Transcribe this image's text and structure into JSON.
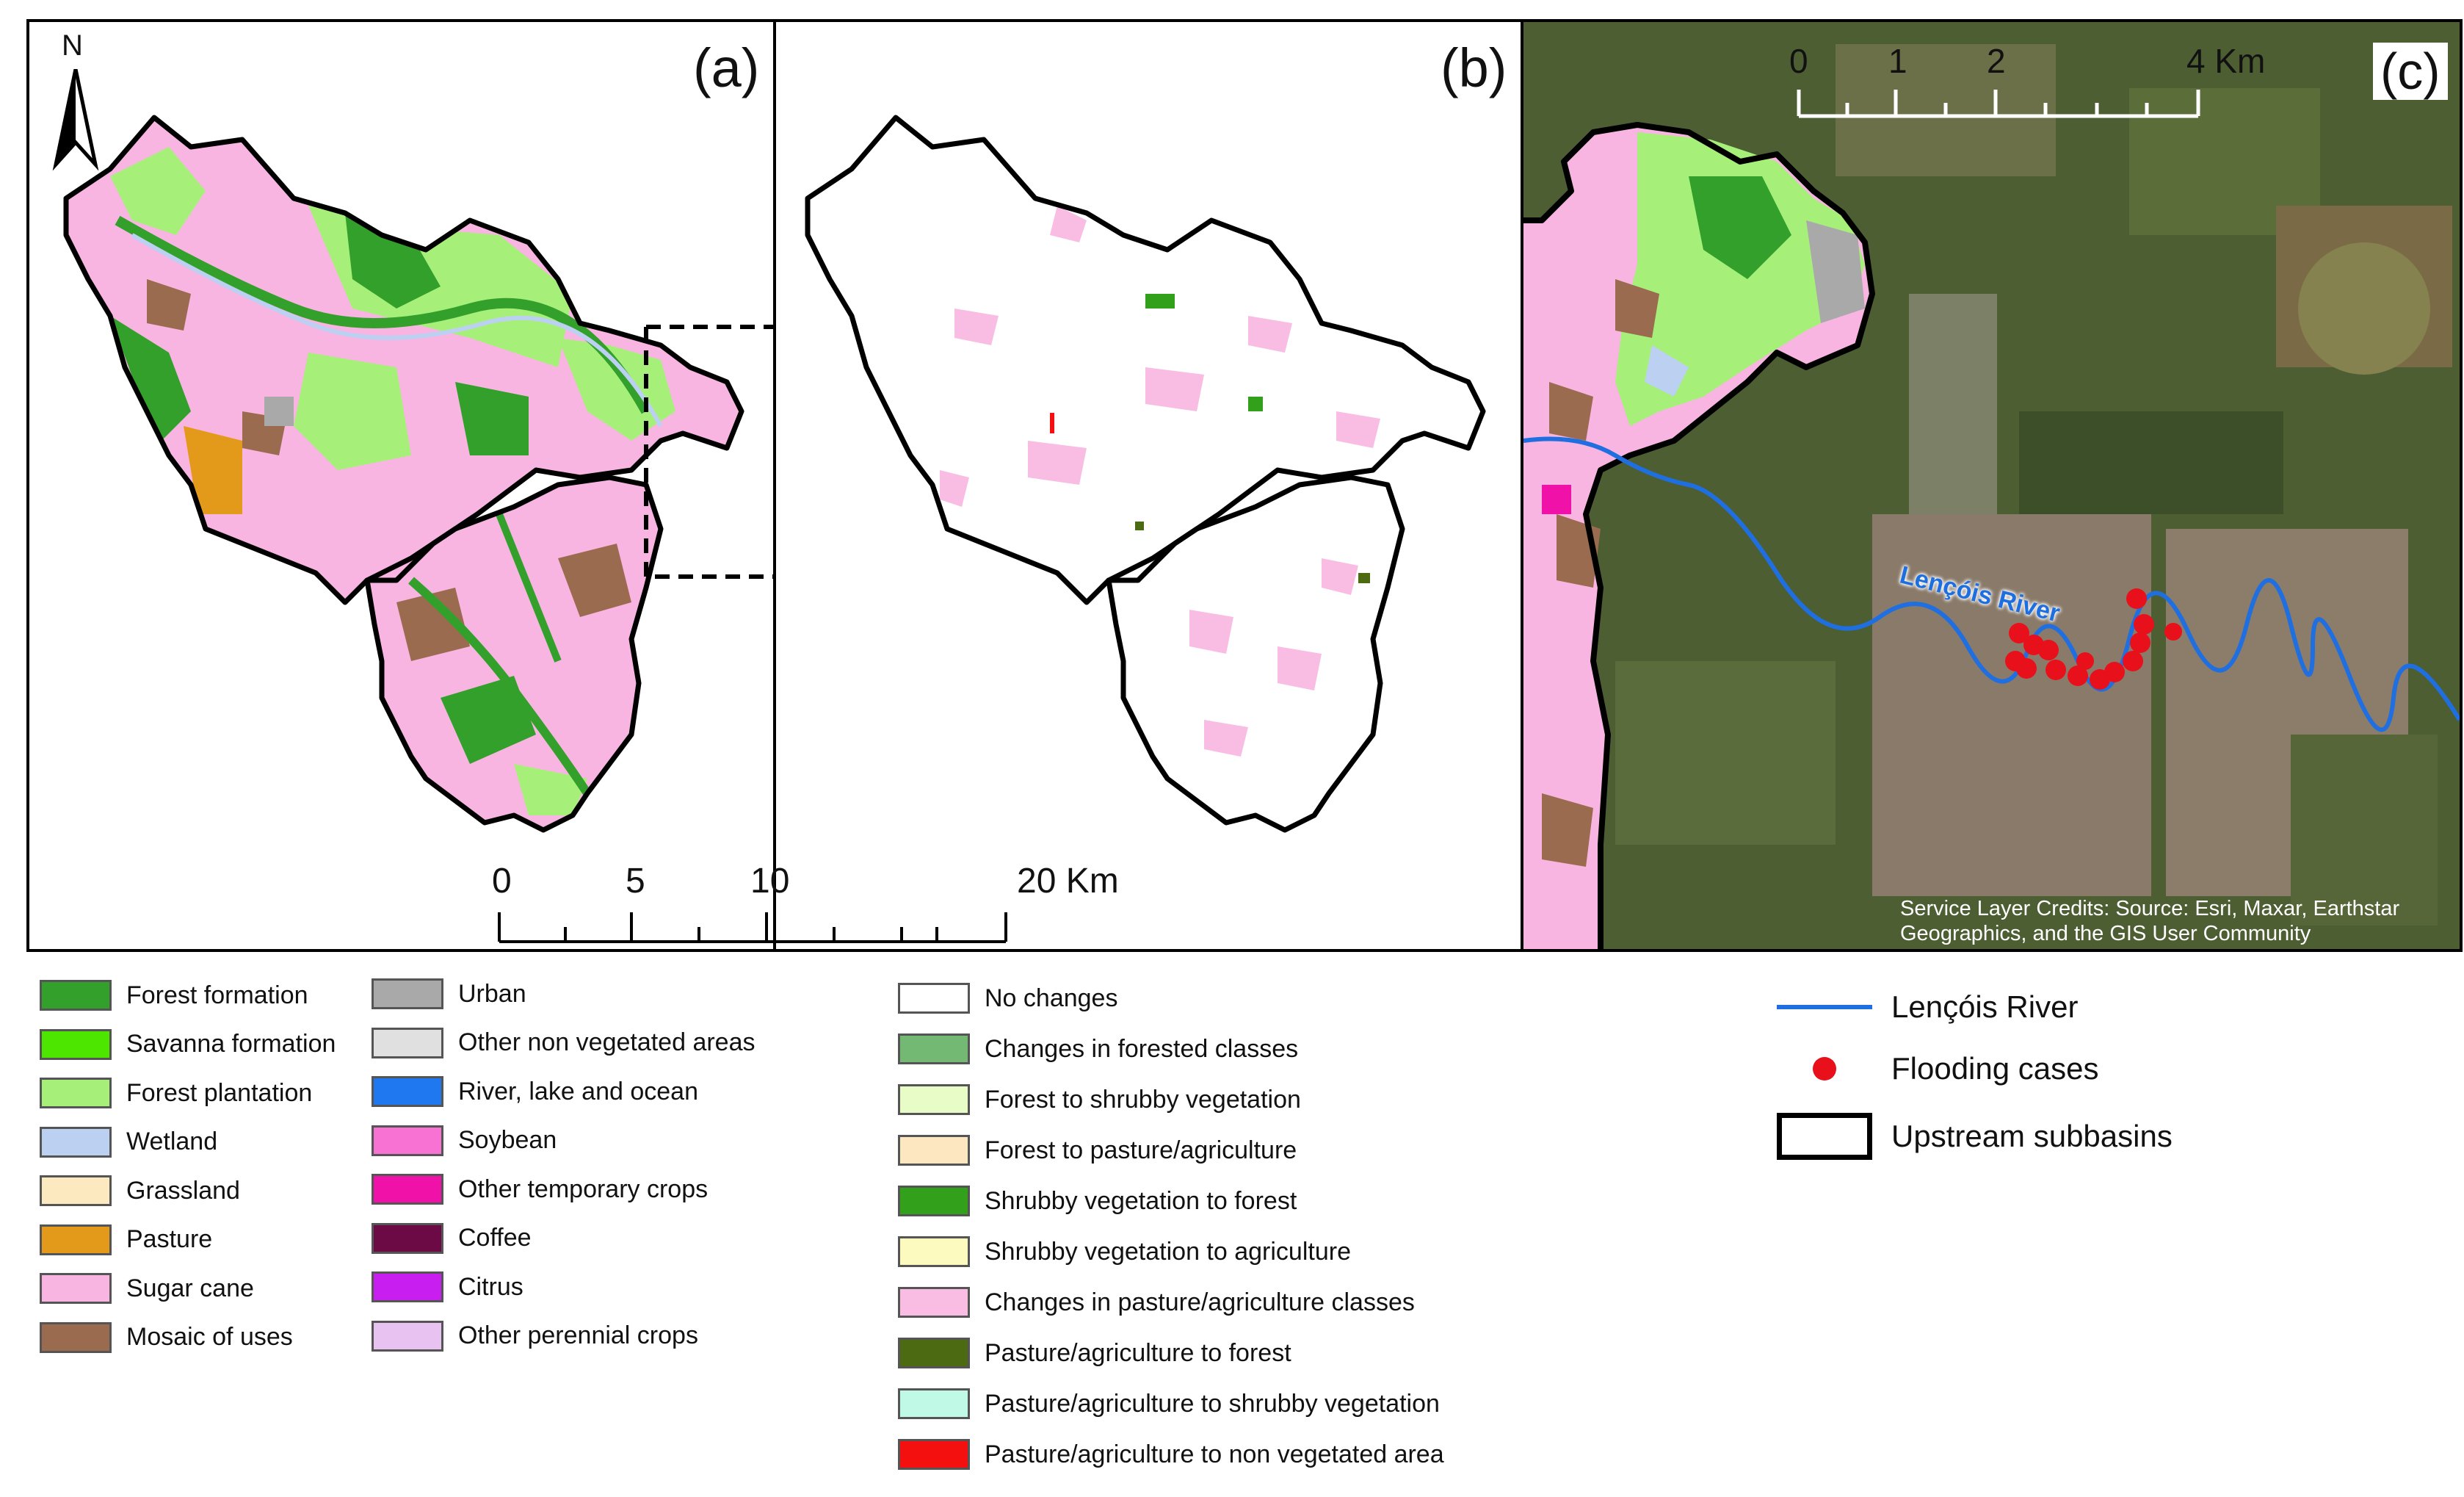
{
  "panels": {
    "a": {
      "label": "(a)"
    },
    "b": {
      "label": "(b)"
    },
    "c": {
      "label": "(c)"
    }
  },
  "north_arrow": {
    "label": "N"
  },
  "scale_main": {
    "labels": [
      "0",
      "5",
      "10",
      "20 Km"
    ]
  },
  "scale_c": {
    "labels": [
      "0",
      "1",
      "2",
      "4 Km"
    ]
  },
  "river_label": "Lençóis River",
  "credit": {
    "line1": "Service Layer Credits: Source: Esri, Maxar, Earthstar",
    "line2": "Geographics, and the GIS User Community"
  },
  "legend_landuse_1": [
    {
      "label": "Forest formation",
      "color": "#33a02c"
    },
    {
      "label": "Savanna formation",
      "color": "#4ce600"
    },
    {
      "label": "Forest plantation",
      "color": "#a6f07a"
    },
    {
      "label": "Wetland",
      "color": "#bcd0f2"
    },
    {
      "label": "Grassland",
      "color": "#fde9c0"
    },
    {
      "label": "Pasture",
      "color": "#e39a1a"
    },
    {
      "label": "Sugar cane",
      "color": "#f9b5e2"
    },
    {
      "label": "Mosaic of uses",
      "color": "#9b6b4f"
    }
  ],
  "legend_landuse_2": [
    {
      "label": "Urban",
      "color": "#a9a9a9"
    },
    {
      "label": "Other non vegetated areas",
      "color": "#e0e0e0"
    },
    {
      "label": "River, lake and ocean",
      "color": "#1f78f0"
    },
    {
      "label": "Soybean",
      "color": "#f772d2"
    },
    {
      "label": "Other temporary crops",
      "color": "#f012a8"
    },
    {
      "label": "Coffee",
      "color": "#6b0a45"
    },
    {
      "label": "Citrus",
      "color": "#c81ff0"
    },
    {
      "label": "Other perennial crops",
      "color": "#e8c3f2"
    }
  ],
  "legend_changes": [
    {
      "label": "No changes",
      "color": "#ffffff"
    },
    {
      "label": "Changes in forested classes",
      "color": "#73b873"
    },
    {
      "label": "Forest to shrubby vegetation",
      "color": "#e8fcc8"
    },
    {
      "label": "Forest to pasture/agriculture",
      "color": "#fde7c0"
    },
    {
      "label": "Shrubby vegetation to forest",
      "color": "#33a01c"
    },
    {
      "label": "Shrubby vegetation to agriculture",
      "color": "#fdfac0"
    },
    {
      "label": "Changes in pasture/agriculture classes",
      "color": "#f9bde3"
    },
    {
      "label": "Pasture/agriculture to forest",
      "color": "#4b6a12"
    },
    {
      "label": "Pasture/agriculture to shrubby vegetation",
      "color": "#c0fae6"
    },
    {
      "label": "Pasture/agriculture to non vegetated area",
      "color": "#f51010"
    }
  ],
  "legend_symbols": [
    {
      "label": "Lençóis River",
      "symbol": "line",
      "color": "#1f6fe0"
    },
    {
      "label": "Flooding cases",
      "symbol": "dot",
      "color": "#e8101a"
    },
    {
      "label": "Upstream subbasins",
      "symbol": "box",
      "color": "#000000"
    }
  ]
}
